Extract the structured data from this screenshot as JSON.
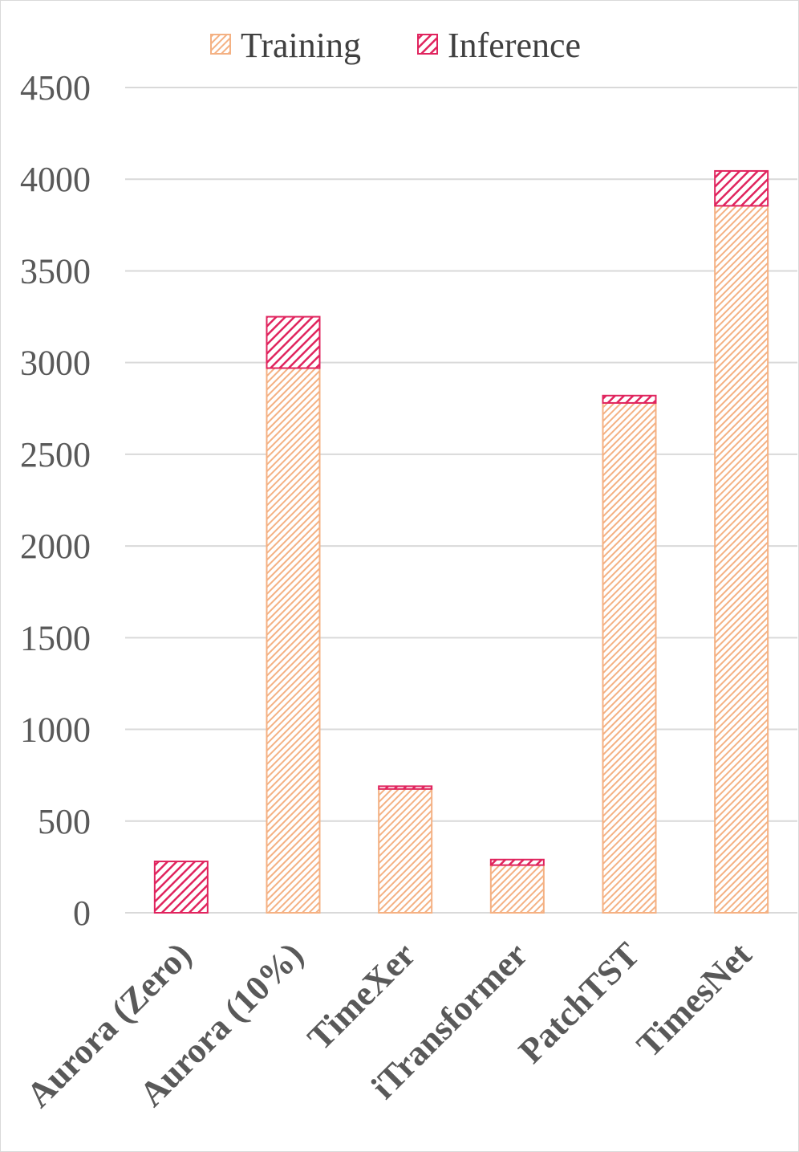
{
  "chart_data": {
    "type": "bar",
    "stacked": true,
    "categories": [
      "Aurora (Zero)",
      "Aurora (10%)",
      "TimeXer",
      "iTransformer",
      "PatchTST",
      "TimesNet"
    ],
    "series": [
      {
        "name": "Training",
        "values": [
          0,
          2970,
          675,
          260,
          2780,
          3855
        ],
        "color": "#f4b183"
      },
      {
        "name": "Inference",
        "values": [
          280,
          280,
          15,
          30,
          40,
          190
        ],
        "color": "#e0245e"
      }
    ],
    "yticks": [
      "0",
      "500",
      "1000",
      "1500",
      "2000",
      "2500",
      "3000",
      "3500",
      "4000",
      "4500"
    ],
    "ylim": [
      0,
      4500
    ],
    "grid": true,
    "legend_position": "top-center",
    "title": "",
    "xlabel": "",
    "ylabel": ""
  }
}
